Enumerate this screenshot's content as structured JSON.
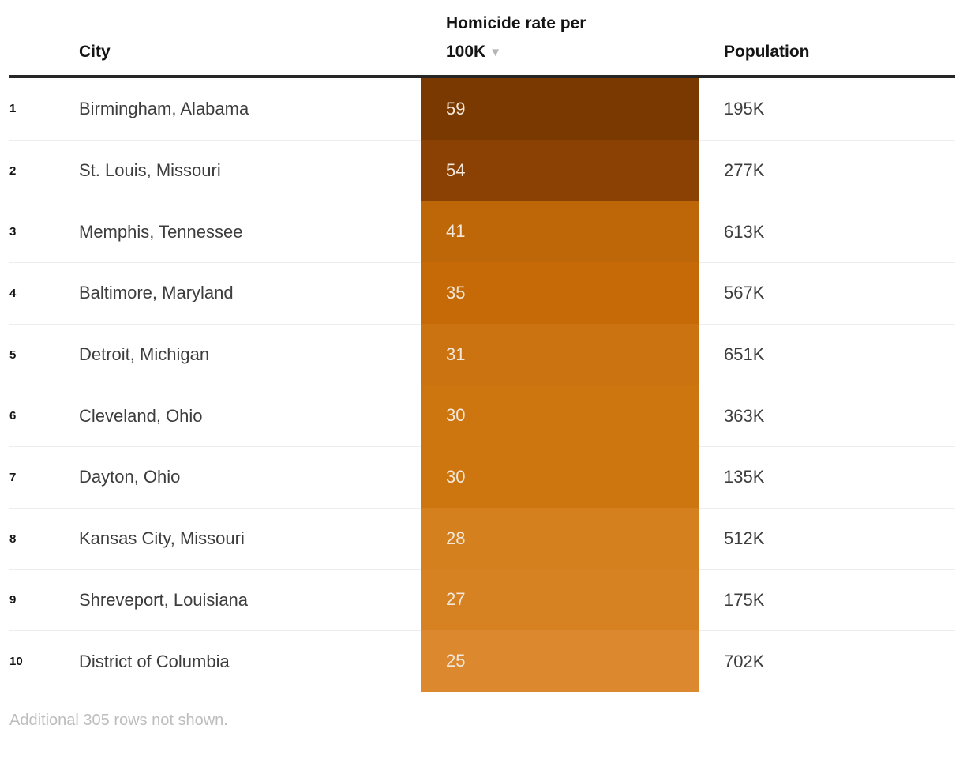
{
  "table": {
    "header": {
      "city": "City",
      "rate": "Homicide rate per 100K",
      "population": "Population",
      "sort_icon": "▼"
    },
    "rows": [
      {
        "rank": "1",
        "city": "Birmingham, Alabama",
        "rate": "59",
        "rate_color": "#7a3900",
        "population": "195K"
      },
      {
        "rank": "2",
        "city": "St. Louis, Missouri",
        "rate": "54",
        "rate_color": "#8a4103",
        "population": "277K"
      },
      {
        "rank": "3",
        "city": "Memphis, Tennessee",
        "rate": "41",
        "rate_color": "#be6708",
        "population": "613K"
      },
      {
        "rank": "4",
        "city": "Baltimore, Maryland",
        "rate": "35",
        "rate_color": "#c56a06",
        "population": "567K"
      },
      {
        "rank": "5",
        "city": "Detroit, Michigan",
        "rate": "31",
        "rate_color": "#cb7310",
        "population": "651K"
      },
      {
        "rank": "6",
        "city": "Cleveland, Ohio",
        "rate": "30",
        "rate_color": "#cd750f",
        "population": "363K"
      },
      {
        "rank": "7",
        "city": "Dayton, Ohio",
        "rate": "30",
        "rate_color": "#cd750f",
        "population": "135K"
      },
      {
        "rank": "8",
        "city": "Kansas City, Missouri",
        "rate": "28",
        "rate_color": "#d5801f",
        "population": "512K"
      },
      {
        "rank": "9",
        "city": "Shreveport, Louisiana",
        "rate": "27",
        "rate_color": "#d68122",
        "population": "175K"
      },
      {
        "rank": "10",
        "city": "District of Columbia",
        "rate": "25",
        "rate_color": "#dc882e",
        "population": "702K"
      }
    ],
    "footnote": "Additional 305 rows not shown."
  },
  "chart_data": {
    "type": "table",
    "title": "",
    "columns": [
      "City",
      "Homicide rate per 100K",
      "Population"
    ],
    "rows": [
      {
        "rank": 1,
        "city": "Birmingham, Alabama",
        "homicide_rate_per_100k": 59,
        "population": "195K"
      },
      {
        "rank": 2,
        "city": "St. Louis, Missouri",
        "homicide_rate_per_100k": 54,
        "population": "277K"
      },
      {
        "rank": 3,
        "city": "Memphis, Tennessee",
        "homicide_rate_per_100k": 41,
        "population": "613K"
      },
      {
        "rank": 4,
        "city": "Baltimore, Maryland",
        "homicide_rate_per_100k": 35,
        "population": "567K"
      },
      {
        "rank": 5,
        "city": "Detroit, Michigan",
        "homicide_rate_per_100k": 31,
        "population": "651K"
      },
      {
        "rank": 6,
        "city": "Cleveland, Ohio",
        "homicide_rate_per_100k": 30,
        "population": "363K"
      },
      {
        "rank": 7,
        "city": "Dayton, Ohio",
        "homicide_rate_per_100k": 30,
        "population": "135K"
      },
      {
        "rank": 8,
        "city": "Kansas City, Missouri",
        "homicide_rate_per_100k": 28,
        "population": "512K"
      },
      {
        "rank": 9,
        "city": "Shreveport, Louisiana",
        "homicide_rate_per_100k": 27,
        "population": "175K"
      },
      {
        "rank": 10,
        "city": "District of Columbia",
        "homicide_rate_per_100k": 25,
        "population": "702K"
      }
    ],
    "sort": {
      "column": "Homicide rate per 100K",
      "direction": "descending"
    },
    "color_scale": {
      "column": "Homicide rate per 100K",
      "low_color": "#dc882e",
      "high_color": "#7a3900"
    },
    "note": "Additional 305 rows not shown."
  }
}
